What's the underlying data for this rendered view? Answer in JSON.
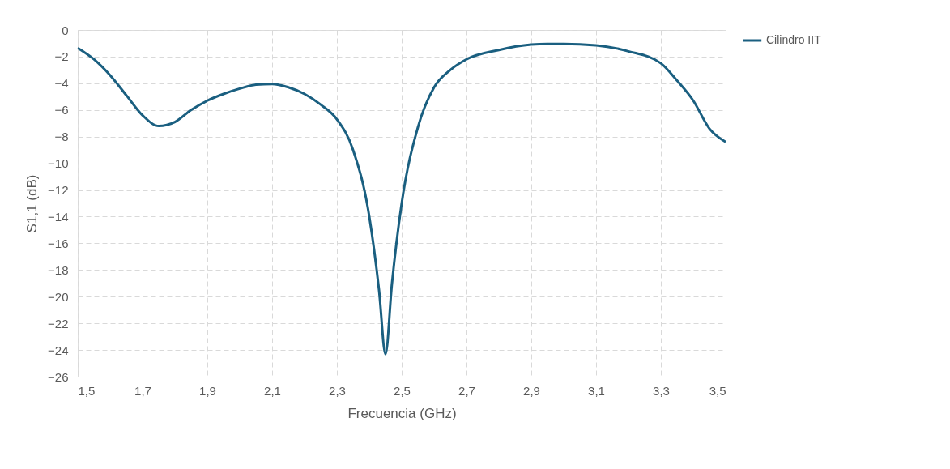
{
  "chart_data": {
    "type": "line",
    "xlabel": "Frecuencia (GHz)",
    "ylabel": "S1,1 (dB)",
    "xlim": [
      1.5,
      3.5
    ],
    "xticks": [
      {
        "value": 1.5,
        "label": "1,5"
      },
      {
        "value": 1.7,
        "label": "1,7"
      },
      {
        "value": 1.9,
        "label": "1,9"
      },
      {
        "value": 2.1,
        "label": "2,1"
      },
      {
        "value": 2.3,
        "label": "2,3"
      },
      {
        "value": 2.5,
        "label": "2,5"
      },
      {
        "value": 2.7,
        "label": "2,7"
      },
      {
        "value": 2.9,
        "label": "2,9"
      },
      {
        "value": 3.1,
        "label": "3,1"
      },
      {
        "value": 3.3,
        "label": "3,3"
      },
      {
        "value": 3.5,
        "label": "3,5"
      }
    ],
    "ylim": [
      -26,
      0
    ],
    "yticks": [
      -26,
      -24,
      -22,
      -20,
      -18,
      -16,
      -14,
      -12,
      -10,
      -8,
      -6,
      -4,
      -2,
      0
    ],
    "grid": true,
    "legend": "right",
    "marker": "none",
    "line_style": "solid",
    "x": [
      1.5,
      1.55,
      1.6,
      1.65,
      1.7,
      1.75,
      1.8,
      1.85,
      1.9,
      1.95,
      2.0,
      2.05,
      2.1,
      2.15,
      2.2,
      2.25,
      2.3,
      2.35,
      2.4,
      2.43,
      2.45,
      2.47,
      2.5,
      2.55,
      2.6,
      2.65,
      2.7,
      2.8,
      2.9,
      2.95,
      3.0,
      3.1,
      3.2,
      3.3,
      3.35,
      3.4,
      3.45,
      3.5
    ],
    "series": [
      {
        "name": "Cilindro IIT",
        "color": "#1a5f80",
        "values": [
          -1.35,
          -2.2,
          -3.4,
          -4.9,
          -6.4,
          -7.2,
          -6.9,
          -6.0,
          -5.3,
          -4.8,
          -4.4,
          -4.1,
          -4.05,
          -4.3,
          -4.8,
          -5.6,
          -6.7,
          -9.0,
          -14.0,
          -19.5,
          -24.3,
          -19.0,
          -13.0,
          -7.3,
          -4.3,
          -3.0,
          -2.2,
          -1.5,
          -1.1,
          -1.05,
          -1.05,
          -1.15,
          -1.6,
          -2.5,
          -3.8,
          -5.3,
          -7.4,
          -8.4
        ]
      }
    ]
  }
}
